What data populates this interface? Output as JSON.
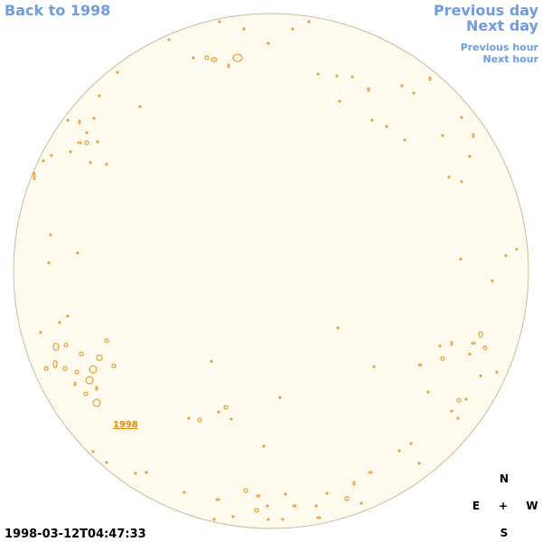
{
  "header": {
    "back": "Back to 1998",
    "previous_day": "Previous day",
    "next_day": "Next day",
    "previous_hour": "Previous hour",
    "next_hour": "Next hour"
  },
  "disk_label": "1998",
  "timestamp": "1998-03-12T04:47:33",
  "compass": {
    "north": "N",
    "east": "E",
    "center": "+",
    "west": "W",
    "south": "S"
  }
}
